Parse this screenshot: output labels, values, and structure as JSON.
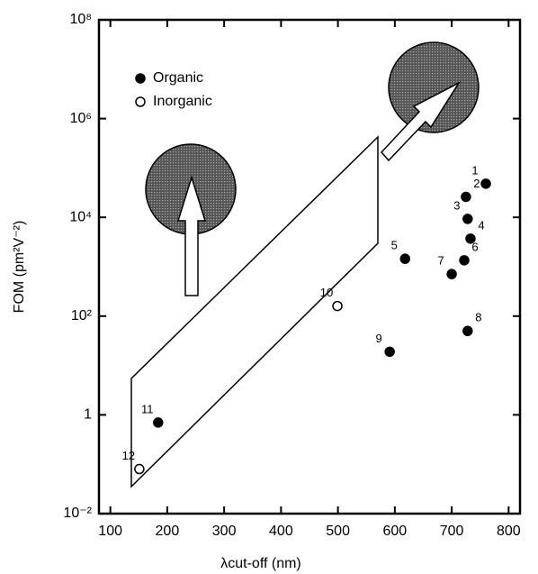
{
  "chart_data": {
    "type": "scatter",
    "x_label": "λcut-off (nm)",
    "y_label": "FOM (pm²V⁻²)",
    "xlim": [
      80,
      820
    ],
    "xticks": [
      100,
      200,
      300,
      400,
      500,
      600,
      700,
      800
    ],
    "ylim": [
      0.01,
      100000000
    ],
    "log_y": true,
    "yticks": [
      {
        "value": 0.01,
        "label": "10⁻²"
      },
      1,
      {
        "value": 100,
        "label": "10²"
      },
      {
        "value": 10000,
        "label": "10⁴"
      },
      {
        "value": 1000000,
        "label": "10⁶"
      },
      {
        "value": 100000000,
        "label": "10⁸"
      }
    ],
    "legend": "upper left",
    "series": [
      {
        "name": "Organic",
        "color": "#000000",
        "filled": true,
        "x": [
          760,
          725,
          728,
          733,
          618,
          722,
          700,
          728,
          591,
          184
        ],
        "values": [
          48000,
          26000,
          9300,
          3700,
          1450,
          1350,
          710,
          50,
          19,
          0.7
        ],
        "point_labels": [
          "1",
          "2",
          "3",
          "4",
          "5",
          "6",
          "7",
          "8",
          "9",
          "11"
        ]
      },
      {
        "name": "Inorganic",
        "color": "#000000",
        "filled": false,
        "x": [
          499,
          151
        ],
        "values": [
          160,
          0.08
        ],
        "point_labels": [
          "10",
          "12"
        ]
      }
    ]
  }
}
